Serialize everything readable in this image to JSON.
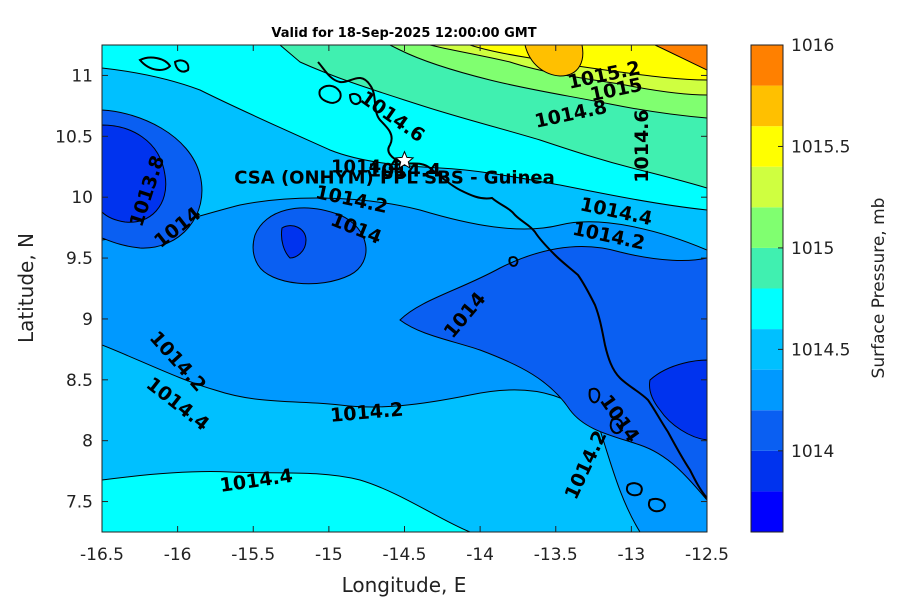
{
  "chart_data": {
    "type": "contour-map",
    "title": "Valid for 18-Sep-2025 12:00:00 GMT",
    "xlabel": "Longitude, E",
    "ylabel": "Latitude, N",
    "xlim": [
      -16.5,
      -12.5
    ],
    "ylim": [
      7.25,
      11.25
    ],
    "xticks": [
      "-16.5",
      "-16",
      "-15.5",
      "-15",
      "-14.5",
      "-14",
      "-13.5",
      "-13",
      "-12.5"
    ],
    "yticks": [
      "7.5",
      "8",
      "8.5",
      "9",
      "9.5",
      "10",
      "10.5",
      "11"
    ],
    "colorbar": {
      "label": "Surface Pressure, mb",
      "range": [
        1013.6,
        1016.0
      ],
      "ticks": [
        "1014",
        "1014.5",
        "1015",
        "1015.5",
        "1016"
      ],
      "levels": [
        1013.6,
        1013.8,
        1014.0,
        1014.2,
        1014.4,
        1014.6,
        1014.8,
        1015.0,
        1015.2,
        1015.4,
        1015.6,
        1015.8,
        1016.0
      ],
      "colors": [
        "#0000ff",
        "#0033ee",
        "#0a5ff2",
        "#0099ff",
        "#00c0ff",
        "#00ffff",
        "#40f0b0",
        "#80ff70",
        "#cfff40",
        "#ffff00",
        "#ffc000",
        "#ff8000",
        "#ff4000",
        "#ff0000"
      ]
    },
    "station": {
      "name": "CSA (ONHYM) PPL SBS  - Guinea",
      "lon": -14.5,
      "lat": 10.3,
      "value": "1014.4"
    },
    "contour_labels": [
      {
        "text": "1015.2",
        "lon": -13.18,
        "lat": 11.0,
        "rot": -12
      },
      {
        "text": "1015",
        "lon": -13.1,
        "lat": 10.88,
        "rot": -12
      },
      {
        "text": "1014.8",
        "lon": -13.4,
        "lat": 10.68,
        "rot": -12
      },
      {
        "text": "1014.6",
        "lon": -14.58,
        "lat": 10.66,
        "rot": 35
      },
      {
        "text": "1014.6",
        "lon": -12.93,
        "lat": 10.42,
        "rot": -90
      },
      {
        "text": "1014.4",
        "lon": -14.5,
        "lat": 10.22,
        "rot": 0
      },
      {
        "text": "1013.8",
        "lon": -16.2,
        "lat": 10.05,
        "rot": -72
      },
      {
        "text": "1014",
        "lon": -16.0,
        "lat": 9.75,
        "rot": -38
      },
      {
        "text": "1014.2",
        "lon": -14.85,
        "lat": 9.98,
        "rot": 12
      },
      {
        "text": "1014",
        "lon": -14.82,
        "lat": 9.74,
        "rot": 22
      },
      {
        "text": "1014.4",
        "lon": -13.1,
        "lat": 9.88,
        "rot": 12
      },
      {
        "text": "1014.2",
        "lon": -13.15,
        "lat": 9.68,
        "rot": 12
      },
      {
        "text": "1014",
        "lon": -14.1,
        "lat": 9.03,
        "rot": -50
      },
      {
        "text": "1014.2",
        "lon": -16.0,
        "lat": 8.65,
        "rot": 48
      },
      {
        "text": "1014.4",
        "lon": -16.0,
        "lat": 8.3,
        "rot": 38
      },
      {
        "text": "1014.2",
        "lon": -14.75,
        "lat": 8.23,
        "rot": -5
      },
      {
        "text": "1014.4",
        "lon": -15.48,
        "lat": 7.67,
        "rot": -8
      },
      {
        "text": "1014.2",
        "lon": -13.3,
        "lat": 7.8,
        "rot": -65
      },
      {
        "text": "1014",
        "lon": -13.08,
        "lat": 8.18,
        "rot": 55
      }
    ]
  }
}
